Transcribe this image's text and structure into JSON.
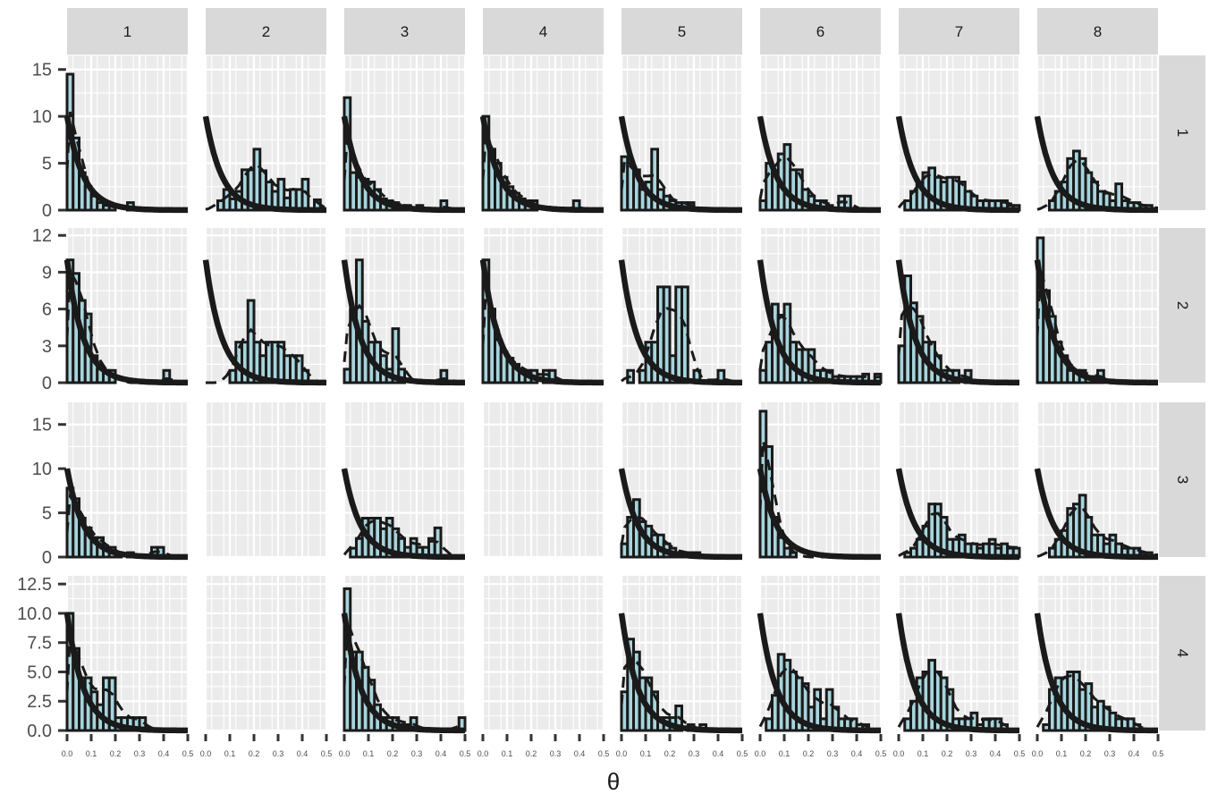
{
  "chart_data": {
    "type": "faceted-histogram",
    "xlabel": "θ",
    "ylabel": "",
    "xlim": [
      0,
      0.5
    ],
    "x_ticks": [
      0.0,
      0.1,
      0.2,
      0.3,
      0.4,
      0.5
    ],
    "x_tick_labels": [
      "0.0",
      "0.1",
      "0.2",
      "0.3",
      "0.4",
      "0.5"
    ],
    "bin_width": 0.025,
    "column_facets": [
      "1",
      "2",
      "3",
      "4",
      "5",
      "6",
      "7",
      "8"
    ],
    "row_facets": [
      "1",
      "2",
      "3",
      "4"
    ],
    "rows": [
      {
        "label": "1",
        "ylim": [
          0,
          16.5
        ],
        "y_ticks": [
          0,
          5,
          10,
          15
        ],
        "y_tick_labels": [
          "0",
          "5",
          "10",
          "15"
        ],
        "panels": [
          {
            "col": "1",
            "counts": [
              14.5,
              7.7,
              4.0,
              2.5,
              1.5,
              0.8,
              0.5,
              0.5,
              0,
              0,
              0.8,
              0,
              0,
              0,
              0,
              0,
              0,
              0,
              0,
              0
            ]
          },
          {
            "col": "2",
            "counts": [
              0,
              0,
              1.0,
              2.2,
              1.2,
              2.0,
              4.3,
              4.3,
              6.5,
              4.2,
              3.0,
              2.0,
              3.3,
              1.3,
              2.2,
              2.2,
              3.3,
              0,
              1.1,
              0
            ]
          },
          {
            "col": "3",
            "counts": [
              12.0,
              4.0,
              3.5,
              3.3,
              3.0,
              2.2,
              1.2,
              1.0,
              0.8,
              0.5,
              0.5,
              0,
              0.5,
              0,
              0,
              0,
              1.0,
              0,
              0,
              0
            ]
          },
          {
            "col": "4",
            "counts": [
              10.0,
              6.5,
              5.0,
              3.5,
              2.5,
              1.8,
              1.2,
              1.0,
              1.0,
              0,
              0,
              0,
              0,
              0,
              0,
              1.0,
              0,
              0,
              0,
              0
            ]
          },
          {
            "col": "5",
            "counts": [
              5.7,
              5.0,
              4.3,
              2.2,
              3.0,
              6.5,
              2.2,
              1.5,
              1.0,
              0.8,
              0.8,
              0.8,
              0,
              0,
              0,
              0,
              0,
              0,
              0,
              0
            ]
          },
          {
            "col": "6",
            "counts": [
              1.0,
              5.0,
              4.2,
              6.0,
              7.0,
              4.3,
              4.3,
              2.2,
              1.5,
              1.0,
              1.0,
              0.5,
              0,
              1.5,
              1.5,
              0,
              0,
              0,
              0,
              0
            ]
          },
          {
            "col": "7",
            "counts": [
              0,
              1.0,
              2.0,
              3.0,
              4.0,
              4.5,
              3.5,
              3.0,
              3.5,
              3.5,
              3.0,
              2.0,
              1.5,
              1.0,
              1.0,
              1.0,
              1.0,
              1.0,
              0.5,
              0.5
            ]
          },
          {
            "col": "8",
            "counts": [
              0,
              0,
              1.0,
              2.0,
              3.0,
              5.5,
              6.3,
              5.5,
              4.0,
              3.0,
              2.0,
              1.8,
              1.0,
              2.8,
              1.0,
              0.8,
              0.8,
              0.5,
              0.5,
              0
            ]
          }
        ]
      },
      {
        "label": "2",
        "ylim": [
          0,
          12.6
        ],
        "y_ticks": [
          0,
          3,
          6,
          9,
          12
        ],
        "y_tick_labels": [
          "0",
          "3",
          "6",
          "9",
          "12"
        ],
        "panels": [
          {
            "col": "1",
            "counts": [
              10.0,
              8.9,
              6.7,
              5.6,
              2.2,
              1.1,
              1.0,
              1.0,
              0,
              0,
              0,
              0,
              0,
              0,
              0,
              0,
              1.0,
              0,
              0,
              0
            ]
          },
          {
            "col": "2",
            "counts": [
              0,
              0,
              0,
              0,
              1.0,
              3.3,
              3.3,
              6.7,
              3.3,
              2.2,
              3.3,
              3.3,
              3.3,
              2.2,
              2.2,
              2.2,
              1.0,
              0,
              0,
              0
            ]
          },
          {
            "col": "3",
            "counts": [
              1.1,
              6.0,
              10.0,
              5.0,
              3.3,
              3.3,
              2.2,
              1.1,
              4.4,
              1.1,
              0,
              0,
              0,
              0,
              0,
              0,
              1.0,
              0,
              0,
              0
            ]
          },
          {
            "col": "4",
            "counts": [
              10.0,
              6.0,
              3.5,
              2.5,
              2.0,
              1.5,
              1.0,
              1.0,
              1.0,
              0,
              1.0,
              1.0,
              0,
              0,
              0,
              0,
              0,
              0,
              0,
              0
            ]
          },
          {
            "col": "5",
            "counts": [
              0,
              1.0,
              0,
              1.0,
              3.3,
              3.3,
              7.8,
              7.8,
              2.2,
              7.8,
              7.8,
              0,
              1.0,
              0,
              0,
              0,
              1.0,
              0,
              0,
              0
            ]
          },
          {
            "col": "6",
            "counts": [
              1.0,
              3.3,
              6.4,
              5.5,
              6.4,
              3.3,
              2.7,
              2.7,
              2.7,
              1.0,
              1.0,
              1.0,
              0.5,
              0.5,
              0.5,
              0.5,
              0.5,
              0.7,
              0,
              0.7
            ]
          },
          {
            "col": "7",
            "counts": [
              3.0,
              8.7,
              6.5,
              5.4,
              3.3,
              3.3,
              2.2,
              1.0,
              1.0,
              1.0,
              0,
              1.0,
              0,
              0,
              0,
              0,
              0,
              0,
              0,
              0
            ]
          },
          {
            "col": "8",
            "counts": [
              11.8,
              7.5,
              5.4,
              3.3,
              2.2,
              1.0,
              1.0,
              1.0,
              0.5,
              0.5,
              1.0,
              0,
              0,
              0,
              0,
              0,
              0,
              0,
              0,
              0
            ]
          }
        ]
      },
      {
        "label": "3",
        "ylim": [
          0,
          17.5
        ],
        "y_ticks": [
          0,
          5,
          10,
          15
        ],
        "y_tick_labels": [
          "0",
          "5",
          "10",
          "15"
        ],
        "panels": [
          {
            "col": "1",
            "counts": [
              7.8,
              6.6,
              4.4,
              3.3,
              2.2,
              2.2,
              1.1,
              1.1,
              0.5,
              0,
              0.5,
              0,
              0,
              0,
              1.1,
              1.1,
              0,
              0,
              0,
              0
            ]
          },
          {
            "col": "2",
            "counts": []
          },
          {
            "col": "3",
            "counts": [
              0,
              1.0,
              2.1,
              4.4,
              4.4,
              4.4,
              3.2,
              4.4,
              3.2,
              2.1,
              1.1,
              2.1,
              1.1,
              1.1,
              2.1,
              3.3,
              0,
              0,
              0,
              0
            ]
          },
          {
            "col": "4",
            "counts": []
          },
          {
            "col": "5",
            "counts": [
              1.5,
              4.5,
              6.5,
              4.0,
              3.5,
              2.5,
              2.5,
              1.5,
              1.0,
              0.5,
              0.5,
              0.5,
              0.5,
              0,
              0,
              0,
              0,
              0,
              0,
              0
            ]
          },
          {
            "col": "6",
            "counts": [
              16.5,
              12.5,
              4.5,
              2.2,
              1.0,
              0.5,
              0,
              0,
              0,
              0,
              0,
              0,
              0,
              0,
              0,
              0,
              0,
              0,
              0,
              0
            ]
          },
          {
            "col": "7",
            "counts": [
              0,
              0.5,
              1.0,
              2.0,
              3.5,
              6.0,
              6.0,
              4.5,
              2.0,
              2.0,
              2.5,
              1.5,
              1.5,
              1.0,
              1.5,
              2.0,
              1.0,
              1.5,
              1.0,
              1.0
            ]
          },
          {
            "col": "8",
            "counts": [
              0,
              0,
              1.0,
              2.0,
              3.0,
              5.5,
              6.0,
              7.0,
              4.5,
              2.5,
              2.5,
              1.5,
              2.5,
              1.5,
              1.0,
              1.0,
              1.0,
              0.5,
              0.5,
              0
            ]
          }
        ]
      },
      {
        "label": "4",
        "ylim": [
          0,
          13.2
        ],
        "y_ticks": [
          0,
          2.5,
          5,
          7.5,
          10,
          12.5
        ],
        "y_tick_labels": [
          "0.0",
          "2.5",
          "5.0",
          "7.5",
          "10.0",
          "12.5"
        ],
        "panels": [
          {
            "col": "1",
            "counts": [
              10.0,
              7.0,
              4.5,
              4.5,
              3.3,
              2.2,
              4.5,
              4.5,
              1.1,
              1.1,
              1.1,
              1.1,
              1.1,
              0,
              0,
              0,
              0,
              0,
              0,
              0
            ]
          },
          {
            "col": "2",
            "counts": []
          },
          {
            "col": "3",
            "counts": [
              12.1,
              6.7,
              6.7,
              5.4,
              4.3,
              2.2,
              1.1,
              1.1,
              1.1,
              0.5,
              0.5,
              1.1,
              0,
              0,
              0,
              0,
              0,
              0,
              0,
              1.1
            ]
          },
          {
            "col": "4",
            "counts": []
          },
          {
            "col": "5",
            "counts": [
              3.3,
              7.8,
              6.7,
              4.5,
              4.5,
              3.3,
              1.1,
              1.1,
              1.1,
              2.1,
              0,
              0.5,
              0,
              0.5,
              0,
              0,
              0,
              0,
              0,
              0
            ]
          },
          {
            "col": "6",
            "counts": [
              0,
              1.0,
              3.0,
              6.5,
              6.0,
              5.0,
              4.5,
              4.0,
              2.0,
              3.5,
              1.0,
              3.5,
              2.0,
              1.0,
              1.0,
              1.0,
              0.5,
              0.5,
              0,
              0
            ]
          },
          {
            "col": "7",
            "counts": [
              0,
              1.0,
              2.5,
              4.5,
              5.0,
              6.0,
              5.0,
              4.5,
              3.5,
              1.0,
              1.0,
              1.0,
              1.5,
              0.5,
              1.0,
              1.0,
              1.0,
              0.5,
              0,
              0
            ]
          },
          {
            "col": "8",
            "counts": [
              0,
              0.5,
              3.5,
              4.5,
              4.5,
              5.0,
              5.0,
              3.5,
              4.0,
              2.0,
              2.5,
              2.0,
              1.5,
              1.0,
              1.0,
              1.0,
              0.5,
              0,
              0,
              0
            ]
          }
        ]
      }
    ],
    "prior_curve": {
      "function": "exponential",
      "peak_at_zero": 10,
      "rate": 15
    },
    "legend": "none",
    "grid": true
  }
}
